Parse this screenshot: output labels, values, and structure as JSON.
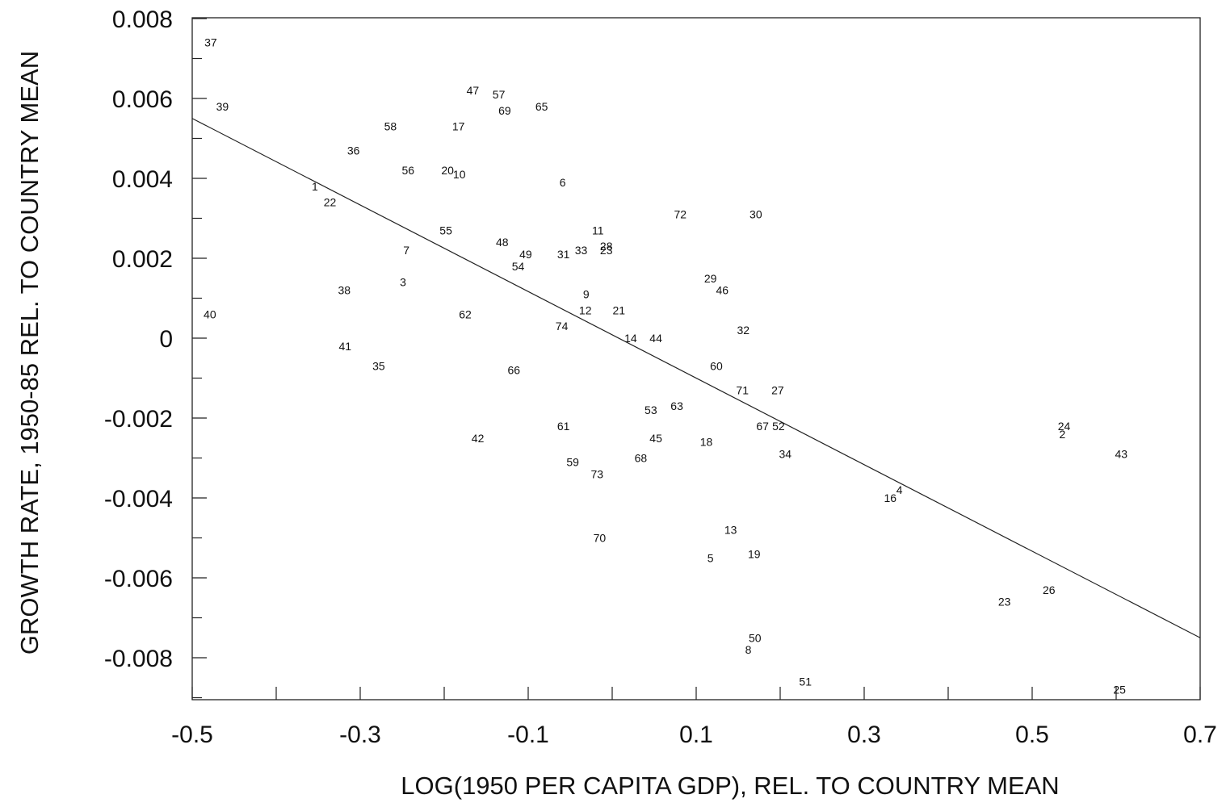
{
  "chart_data": {
    "type": "scatter",
    "title": "",
    "xlabel": "LOG(1950 PER CAPITA GDP), REL. TO COUNTRY MEAN",
    "ylabel": "GROWTH RATE, 1950-85 REL. TO COUNTRY MEAN",
    "xlim": [
      -0.5,
      0.7
    ],
    "ylim": [
      -0.009,
      0.008
    ],
    "x_ticks": [
      -0.5,
      -0.3,
      -0.1,
      0.1,
      0.3,
      0.5,
      0.7
    ],
    "x_tick_labels": [
      "-0.5",
      "-0.3",
      "-0.1",
      "0.1",
      "0.3",
      "0.5",
      "0.7"
    ],
    "x_minor_ticks": [
      -0.4,
      -0.2,
      0.0,
      0.2,
      0.4,
      0.6
    ],
    "y_ticks": [
      0.008,
      0.006,
      0.004,
      0.002,
      0,
      -0.002,
      -0.004,
      -0.006,
      -0.008
    ],
    "y_tick_labels": [
      "0.008",
      "0.006",
      "0.004",
      "0.002",
      "0",
      "-0.002",
      "-0.004",
      "-0.006",
      "-0.008"
    ],
    "y_minor_ticks": [
      0.007,
      0.005,
      0.003,
      0.001,
      -0.001,
      -0.003,
      -0.005,
      -0.007,
      -0.009
    ],
    "grid": false,
    "fit_line": {
      "x": [
        -0.5,
        0.7
      ],
      "y": [
        0.0055,
        -0.0075
      ]
    },
    "points": [
      {
        "label": "37",
        "x": -0.478,
        "y": 0.0074
      },
      {
        "label": "39",
        "x": -0.464,
        "y": 0.0058
      },
      {
        "label": "47",
        "x": -0.166,
        "y": 0.0062
      },
      {
        "label": "57",
        "x": -0.135,
        "y": 0.0061
      },
      {
        "label": "69",
        "x": -0.128,
        "y": 0.0057
      },
      {
        "label": "65",
        "x": -0.084,
        "y": 0.0058
      },
      {
        "label": "58",
        "x": -0.264,
        "y": 0.0053
      },
      {
        "label": "17",
        "x": -0.183,
        "y": 0.0053
      },
      {
        "label": "36",
        "x": -0.308,
        "y": 0.0047
      },
      {
        "label": "56",
        "x": -0.243,
        "y": 0.0042
      },
      {
        "label": "20",
        "x": -0.196,
        "y": 0.0042
      },
      {
        "label": "10",
        "x": -0.182,
        "y": 0.0041
      },
      {
        "label": "6",
        "x": -0.059,
        "y": 0.0039
      },
      {
        "label": "1",
        "x": -0.354,
        "y": 0.0038
      },
      {
        "label": "22",
        "x": -0.336,
        "y": 0.0034
      },
      {
        "label": "72",
        "x": 0.081,
        "y": 0.0031
      },
      {
        "label": "30",
        "x": 0.171,
        "y": 0.0031
      },
      {
        "label": "55",
        "x": -0.198,
        "y": 0.0027
      },
      {
        "label": "11",
        "x": -0.017,
        "y": 0.0027
      },
      {
        "label": "48",
        "x": -0.131,
        "y": 0.0024
      },
      {
        "label": "28",
        "x": -0.007,
        "y": 0.0023
      },
      {
        "label": "23",
        "x": -0.007,
        "y": 0.0022
      },
      {
        "label": "7",
        "x": -0.245,
        "y": 0.0022
      },
      {
        "label": "49",
        "x": -0.103,
        "y": 0.0021
      },
      {
        "label": "31",
        "x": -0.058,
        "y": 0.0021
      },
      {
        "label": "33",
        "x": -0.037,
        "y": 0.0022
      },
      {
        "label": "54",
        "x": -0.112,
        "y": 0.0018
      },
      {
        "label": "29",
        "x": 0.117,
        "y": 0.0015
      },
      {
        "label": "3",
        "x": -0.249,
        "y": 0.0014
      },
      {
        "label": "46",
        "x": 0.131,
        "y": 0.0012
      },
      {
        "label": "38",
        "x": -0.319,
        "y": 0.0012
      },
      {
        "label": "9",
        "x": -0.031,
        "y": 0.0011
      },
      {
        "label": "40",
        "x": -0.479,
        "y": 0.0006
      },
      {
        "label": "62",
        "x": -0.175,
        "y": 0.0006
      },
      {
        "label": "21",
        "x": 0.008,
        "y": 0.0007
      },
      {
        "label": "12",
        "x": -0.032,
        "y": 0.0007
      },
      {
        "label": "74",
        "x": -0.06,
        "y": 0.0003
      },
      {
        "label": "32",
        "x": 0.156,
        "y": 0.0002
      },
      {
        "label": "14",
        "x": 0.022,
        "y": 0.0
      },
      {
        "label": "44",
        "x": 0.052,
        "y": 0.0
      },
      {
        "label": "41",
        "x": -0.318,
        "y": -0.0002
      },
      {
        "label": "35",
        "x": -0.278,
        "y": -0.0007
      },
      {
        "label": "66",
        "x": -0.117,
        "y": -0.0008
      },
      {
        "label": "60",
        "x": 0.124,
        "y": -0.0007
      },
      {
        "label": "71",
        "x": 0.155,
        "y": -0.0013
      },
      {
        "label": "27",
        "x": 0.197,
        "y": -0.0013
      },
      {
        "label": "63",
        "x": 0.077,
        "y": -0.0017
      },
      {
        "label": "53",
        "x": 0.046,
        "y": -0.0018
      },
      {
        "label": "61",
        "x": -0.058,
        "y": -0.0022
      },
      {
        "label": "67",
        "x": 0.179,
        "y": -0.0022
      },
      {
        "label": "52",
        "x": 0.198,
        "y": -0.0022
      },
      {
        "label": "24",
        "x": 0.538,
        "y": -0.0022
      },
      {
        "label": "2",
        "x": 0.536,
        "y": -0.0024
      },
      {
        "label": "42",
        "x": -0.16,
        "y": -0.0025
      },
      {
        "label": "45",
        "x": 0.052,
        "y": -0.0025
      },
      {
        "label": "18",
        "x": 0.112,
        "y": -0.0026
      },
      {
        "label": "34",
        "x": 0.206,
        "y": -0.0029
      },
      {
        "label": "43",
        "x": 0.606,
        "y": -0.0029
      },
      {
        "label": "68",
        "x": 0.034,
        "y": -0.003
      },
      {
        "label": "59",
        "x": -0.047,
        "y": -0.0031
      },
      {
        "label": "73",
        "x": -0.018,
        "y": -0.0034
      },
      {
        "label": "4",
        "x": 0.342,
        "y": -0.0038
      },
      {
        "label": "16",
        "x": 0.331,
        "y": -0.004
      },
      {
        "label": "13",
        "x": 0.141,
        "y": -0.0048
      },
      {
        "label": "70",
        "x": -0.015,
        "y": -0.005
      },
      {
        "label": "19",
        "x": 0.169,
        "y": -0.0054
      },
      {
        "label": "5",
        "x": 0.117,
        "y": -0.0055
      },
      {
        "label": "26",
        "x": 0.52,
        "y": -0.0063
      },
      {
        "label": "23",
        "x": 0.467,
        "y": -0.0066
      },
      {
        "label": "50",
        "x": 0.17,
        "y": -0.0075
      },
      {
        "label": "8",
        "x": 0.162,
        "y": -0.0078
      },
      {
        "label": "51",
        "x": 0.23,
        "y": -0.0086
      },
      {
        "label": "25",
        "x": 0.604,
        "y": -0.0088
      }
    ]
  }
}
